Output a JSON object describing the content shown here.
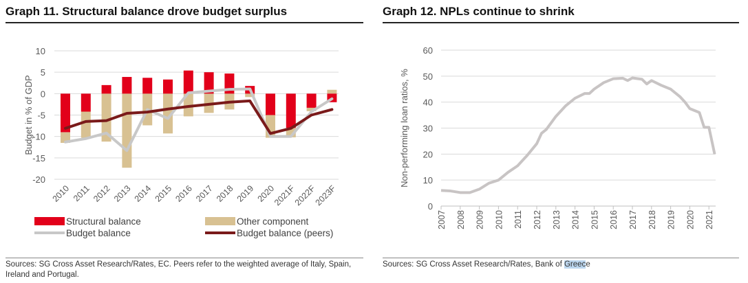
{
  "titles": {
    "left": "Graph 11. Structural balance drove budget surplus",
    "right": "Graph 12. NPLs continue to shrink"
  },
  "sources": {
    "left": "Sources: SG Cross Asset Research/Rates, EC. Peers refer to the weighted average of Italy, Spain, Ireland and Portugal.",
    "right_prefix": "Sources: SG Cross Asset Research/Rates, Bank of ",
    "right_highlight": "Greec",
    "right_suffix": "e"
  },
  "chart_data": [
    {
      "type": "bar",
      "title": "Graph 11. Structural balance drove budget surplus",
      "ylabel": "Budget in % of GDP",
      "ylim": [
        -20,
        10
      ],
      "yticks": [
        10,
        5,
        0,
        -5,
        -10,
        -15,
        -20
      ],
      "categories": [
        "2010",
        "2011",
        "2012",
        "2013",
        "2014",
        "2015",
        "2016",
        "2017",
        "2018",
        "2019",
        "2020",
        "2021F",
        "2022F",
        "2023F"
      ],
      "series": [
        {
          "name": "Structural balance",
          "kind": "bar",
          "color": "#e2001a",
          "values": [
            -9,
            -4.2,
            2,
            3.9,
            3.7,
            3.3,
            5.4,
            5,
            4.7,
            1.8,
            -5,
            -8,
            -3.3,
            -2
          ]
        },
        {
          "name": "Other component",
          "kind": "bar",
          "color": "#d8c192",
          "values": [
            -2.5,
            -6.1,
            -11.2,
            -17.3,
            -7.4,
            -9.3,
            -5.3,
            -4.5,
            -3.7,
            -0.8,
            -5.3,
            -2.2,
            -0.8,
            0.9
          ]
        },
        {
          "name": "Budget balance",
          "kind": "line",
          "color": "#c8c8c8",
          "values": [
            -11.3,
            -10.5,
            -9.2,
            -13.3,
            -3.7,
            -5.8,
            0.2,
            0.6,
            1.0,
            1.1,
            -10,
            -10,
            -4.2,
            -1.2
          ]
        },
        {
          "name": "Budget balance (peers)",
          "kind": "line",
          "color": "#7a1a1a",
          "values": [
            -8.1,
            -6.5,
            -6.3,
            -4.6,
            -4.3,
            -3.6,
            -3.0,
            -2.5,
            -2.0,
            -1.7,
            -9.3,
            -8.1,
            -5,
            -3.7
          ]
        }
      ],
      "legend": "bottom"
    },
    {
      "type": "line",
      "title": "Graph 12. NPLs continue to shrink",
      "ylabel": "Non-performing loan ratios, %",
      "ylim": [
        0,
        60
      ],
      "yticks": [
        60,
        50,
        40,
        30,
        20,
        10,
        0
      ],
      "xticks": [
        "2007",
        "2008",
        "2009",
        "2010",
        "2011",
        "2012",
        "2013",
        "2014",
        "2015",
        "2016",
        "2017",
        "2018",
        "2019",
        "2020",
        "2021"
      ],
      "series": [
        {
          "name": "NPL ratio",
          "color": "#c8c4c4",
          "x": [
            2007,
            2007.5,
            2008,
            2008.5,
            2009,
            2009.5,
            2010,
            2010.5,
            2011,
            2011.5,
            2012,
            2012.25,
            2012.5,
            2013,
            2013.5,
            2014,
            2014.5,
            2014.75,
            2015,
            2015.5,
            2016,
            2016.5,
            2016.75,
            2017,
            2017.5,
            2017.75,
            2018,
            2018.5,
            2019,
            2019.5,
            2019.75,
            2020,
            2020.5,
            2020.75,
            2021,
            2021.3
          ],
          "y": [
            6,
            5.8,
            5.2,
            5.2,
            6.5,
            8.8,
            10,
            13,
            15.5,
            19.5,
            24,
            28,
            29.5,
            34.5,
            38.5,
            41.5,
            43.3,
            43.3,
            45,
            47.5,
            49,
            49.2,
            48.3,
            49.3,
            48.8,
            47,
            48.3,
            46.5,
            45,
            42,
            40,
            37.5,
            36,
            30.3,
            30.3,
            20
          ]
        }
      ]
    }
  ]
}
